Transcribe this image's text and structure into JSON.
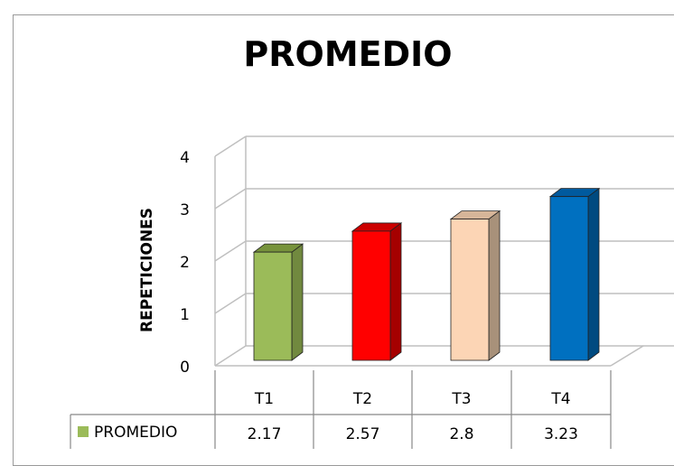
{
  "chart_data": {
    "type": "bar",
    "title": "PROMEDIO",
    "ylabel": "REPETICIONES",
    "xlabel": "",
    "categories": [
      "T1",
      "T2",
      "T3",
      "T4"
    ],
    "series": [
      {
        "name": "PROMEDIO",
        "values": [
          2.17,
          2.57,
          2.8,
          3.23
        ]
      }
    ],
    "value_labels": [
      "2.17",
      "2.57",
      "2.8",
      "3.23"
    ],
    "yticks": [
      "0",
      "1",
      "2",
      "3",
      "4"
    ],
    "ylim": [
      0,
      4
    ],
    "grid": true,
    "three_d": true,
    "legend": "data table",
    "bar_colors": [
      {
        "front": "#9bbb59",
        "side": "#71893f",
        "top": "#77933c"
      },
      {
        "front": "#ff0000",
        "side": "#a50000",
        "top": "#cc0000"
      },
      {
        "front": "#fcd5b5",
        "side": "#a8917a",
        "top": "#d6b599"
      },
      {
        "front": "#0070c0",
        "side": "#004a80",
        "top": "#005a9e"
      }
    ],
    "legend_swatch_color": "#9bbb59"
  }
}
